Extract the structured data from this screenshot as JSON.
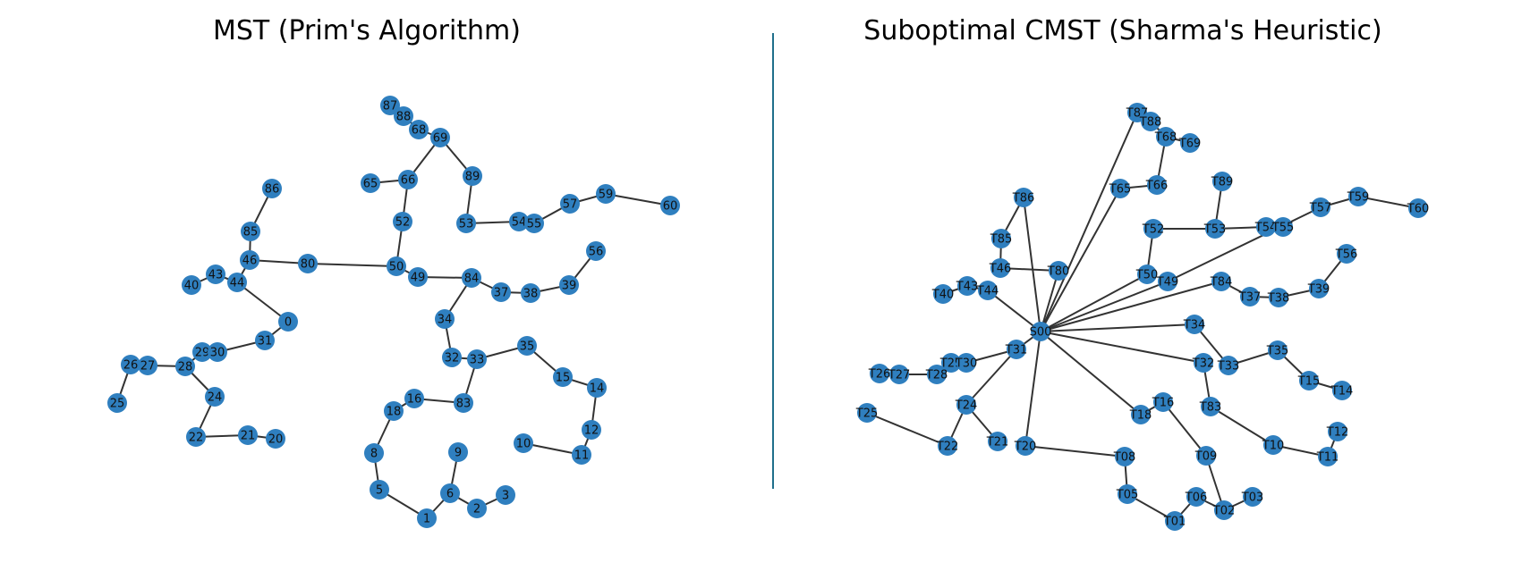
{
  "colors": {
    "node": "#2f7fbf",
    "edge": "#333333",
    "divider": "#1f6f8b",
    "text": "#000000"
  },
  "panels": [
    {
      "title": "MST (Prim's Algorithm)",
      "nodes": [
        {
          "id": "87",
          "label": "87"
        },
        {
          "id": "88",
          "label": "88"
        },
        {
          "id": "68",
          "label": "68"
        },
        {
          "id": "69",
          "label": "69"
        },
        {
          "id": "65",
          "label": "65"
        },
        {
          "id": "66",
          "label": "66"
        },
        {
          "id": "89",
          "label": "89"
        },
        {
          "id": "86",
          "label": "86"
        },
        {
          "id": "52",
          "label": "52"
        },
        {
          "id": "53",
          "label": "53"
        },
        {
          "id": "54",
          "label": "54"
        },
        {
          "id": "55",
          "label": "55"
        },
        {
          "id": "57",
          "label": "57"
        },
        {
          "id": "59",
          "label": "59"
        },
        {
          "id": "60",
          "label": "60"
        },
        {
          "id": "85",
          "label": "85"
        },
        {
          "id": "46",
          "label": "46"
        },
        {
          "id": "80",
          "label": "80"
        },
        {
          "id": "50",
          "label": "50"
        },
        {
          "id": "49",
          "label": "49"
        },
        {
          "id": "84",
          "label": "84"
        },
        {
          "id": "56",
          "label": "56"
        },
        {
          "id": "43",
          "label": "43"
        },
        {
          "id": "40",
          "label": "40"
        },
        {
          "id": "44",
          "label": "44"
        },
        {
          "id": "37",
          "label": "37"
        },
        {
          "id": "38",
          "label": "38"
        },
        {
          "id": "39",
          "label": "39"
        },
        {
          "id": "0",
          "label": "0"
        },
        {
          "id": "34",
          "label": "34"
        },
        {
          "id": "31",
          "label": "31"
        },
        {
          "id": "29",
          "label": "29"
        },
        {
          "id": "30",
          "label": "30"
        },
        {
          "id": "35",
          "label": "35"
        },
        {
          "id": "32",
          "label": "32"
        },
        {
          "id": "33",
          "label": "33"
        },
        {
          "id": "26",
          "label": "26"
        },
        {
          "id": "27",
          "label": "27"
        },
        {
          "id": "28",
          "label": "28"
        },
        {
          "id": "15",
          "label": "15"
        },
        {
          "id": "14",
          "label": "14"
        },
        {
          "id": "24",
          "label": "24"
        },
        {
          "id": "16",
          "label": "16"
        },
        {
          "id": "83",
          "label": "83"
        },
        {
          "id": "25",
          "label": "25"
        },
        {
          "id": "18",
          "label": "18"
        },
        {
          "id": "12",
          "label": "12"
        },
        {
          "id": "22",
          "label": "22"
        },
        {
          "id": "21",
          "label": "21"
        },
        {
          "id": "20",
          "label": "20"
        },
        {
          "id": "10",
          "label": "10"
        },
        {
          "id": "11",
          "label": "11"
        },
        {
          "id": "8",
          "label": "8"
        },
        {
          "id": "9",
          "label": "9"
        },
        {
          "id": "5",
          "label": "5"
        },
        {
          "id": "6",
          "label": "6"
        },
        {
          "id": "3",
          "label": "3"
        },
        {
          "id": "2",
          "label": "2"
        },
        {
          "id": "1",
          "label": "1"
        }
      ],
      "edges": [
        [
          "87",
          "88"
        ],
        [
          "88",
          "68"
        ],
        [
          "68",
          "69"
        ],
        [
          "69",
          "66"
        ],
        [
          "66",
          "65"
        ],
        [
          "69",
          "89"
        ],
        [
          "89",
          "53"
        ],
        [
          "53",
          "54"
        ],
        [
          "54",
          "55"
        ],
        [
          "55",
          "57"
        ],
        [
          "57",
          "59"
        ],
        [
          "59",
          "60"
        ],
        [
          "66",
          "52"
        ],
        [
          "52",
          "50"
        ],
        [
          "50",
          "80"
        ],
        [
          "80",
          "46"
        ],
        [
          "46",
          "85"
        ],
        [
          "85",
          "86"
        ],
        [
          "46",
          "44"
        ],
        [
          "44",
          "43"
        ],
        [
          "43",
          "40"
        ],
        [
          "44",
          "0"
        ],
        [
          "0",
          "31"
        ],
        [
          "31",
          "30"
        ],
        [
          "30",
          "29"
        ],
        [
          "29",
          "28"
        ],
        [
          "28",
          "27"
        ],
        [
          "27",
          "26"
        ],
        [
          "26",
          "25"
        ],
        [
          "28",
          "24"
        ],
        [
          "24",
          "22"
        ],
        [
          "22",
          "21"
        ],
        [
          "21",
          "20"
        ],
        [
          "50",
          "49"
        ],
        [
          "49",
          "84"
        ],
        [
          "84",
          "37"
        ],
        [
          "37",
          "38"
        ],
        [
          "38",
          "39"
        ],
        [
          "39",
          "56"
        ],
        [
          "84",
          "34"
        ],
        [
          "34",
          "32"
        ],
        [
          "32",
          "33"
        ],
        [
          "33",
          "35"
        ],
        [
          "35",
          "15"
        ],
        [
          "15",
          "14"
        ],
        [
          "14",
          "12"
        ],
        [
          "12",
          "11"
        ],
        [
          "11",
          "10"
        ],
        [
          "33",
          "83"
        ],
        [
          "83",
          "16"
        ],
        [
          "16",
          "18"
        ],
        [
          "18",
          "8"
        ],
        [
          "8",
          "5"
        ],
        [
          "5",
          "1"
        ],
        [
          "1",
          "6"
        ],
        [
          "6",
          "9"
        ],
        [
          "6",
          "2"
        ],
        [
          "2",
          "3"
        ]
      ]
    },
    {
      "title": "Suboptimal CMST (Sharma's Heuristic)",
      "nodes": [
        {
          "id": "T87",
          "label": "T87"
        },
        {
          "id": "T88",
          "label": "T88"
        },
        {
          "id": "T68",
          "label": "T68"
        },
        {
          "id": "T69",
          "label": "T69"
        },
        {
          "id": "T89",
          "label": "T89"
        },
        {
          "id": "T86",
          "label": "T86"
        },
        {
          "id": "T65",
          "label": "T65"
        },
        {
          "id": "T66",
          "label": "T66"
        },
        {
          "id": "T59",
          "label": "T59"
        },
        {
          "id": "T60",
          "label": "T60"
        },
        {
          "id": "T57",
          "label": "T57"
        },
        {
          "id": "T52",
          "label": "T52"
        },
        {
          "id": "T53",
          "label": "T53"
        },
        {
          "id": "T54",
          "label": "T54"
        },
        {
          "id": "T55",
          "label": "T55"
        },
        {
          "id": "T85",
          "label": "T85"
        },
        {
          "id": "T56",
          "label": "T56"
        },
        {
          "id": "T46",
          "label": "T46"
        },
        {
          "id": "T80",
          "label": "T80"
        },
        {
          "id": "T50",
          "label": "T50"
        },
        {
          "id": "T49",
          "label": "T49"
        },
        {
          "id": "T84",
          "label": "T84"
        },
        {
          "id": "T43",
          "label": "T43"
        },
        {
          "id": "T44",
          "label": "T44"
        },
        {
          "id": "T39",
          "label": "T39"
        },
        {
          "id": "T40",
          "label": "T40"
        },
        {
          "id": "T37",
          "label": "T37"
        },
        {
          "id": "T38",
          "label": "T38"
        },
        {
          "id": "T34",
          "label": "T34"
        },
        {
          "id": "S00",
          "label": "S00"
        },
        {
          "id": "T31",
          "label": "T31"
        },
        {
          "id": "T35",
          "label": "T35"
        },
        {
          "id": "T29",
          "label": "T29"
        },
        {
          "id": "T30",
          "label": "T30"
        },
        {
          "id": "T32",
          "label": "T32"
        },
        {
          "id": "T33",
          "label": "T33"
        },
        {
          "id": "T26",
          "label": "T26"
        },
        {
          "id": "T27",
          "label": "T27"
        },
        {
          "id": "T28",
          "label": "T28"
        },
        {
          "id": "T15",
          "label": "T15"
        },
        {
          "id": "T14",
          "label": "T14"
        },
        {
          "id": "T24",
          "label": "T24"
        },
        {
          "id": "T16",
          "label": "T16"
        },
        {
          "id": "T83",
          "label": "T83"
        },
        {
          "id": "T18",
          "label": "T18"
        },
        {
          "id": "T25",
          "label": "T25"
        },
        {
          "id": "T12",
          "label": "T12"
        },
        {
          "id": "T21",
          "label": "T21"
        },
        {
          "id": "T20",
          "label": "T20"
        },
        {
          "id": "T10",
          "label": "T10"
        },
        {
          "id": "T22",
          "label": "T22"
        },
        {
          "id": "T11",
          "label": "T11"
        },
        {
          "id": "T08",
          "label": "T08"
        },
        {
          "id": "T09",
          "label": "T09"
        },
        {
          "id": "T05",
          "label": "T05"
        },
        {
          "id": "T06",
          "label": "T06"
        },
        {
          "id": "T03",
          "label": "T03"
        },
        {
          "id": "T02",
          "label": "T02"
        },
        {
          "id": "T01",
          "label": "T01"
        }
      ],
      "edges": [
        [
          "S00",
          "T87"
        ],
        [
          "T87",
          "T88"
        ],
        [
          "T88",
          "T68"
        ],
        [
          "T68",
          "T69"
        ],
        [
          "T68",
          "T66"
        ],
        [
          "T66",
          "T65"
        ],
        [
          "S00",
          "T65"
        ],
        [
          "S00",
          "T86"
        ],
        [
          "T86",
          "T85"
        ],
        [
          "T85",
          "T46"
        ],
        [
          "T46",
          "T80"
        ],
        [
          "S00",
          "T80"
        ],
        [
          "S00",
          "T44"
        ],
        [
          "T44",
          "T43"
        ],
        [
          "T43",
          "T40"
        ],
        [
          "S00",
          "T50"
        ],
        [
          "T50",
          "T52"
        ],
        [
          "T52",
          "T53"
        ],
        [
          "T53",
          "T89"
        ],
        [
          "T53",
          "T54"
        ],
        [
          "T54",
          "T55"
        ],
        [
          "S00",
          "T49"
        ],
        [
          "T49",
          "T57"
        ],
        [
          "T57",
          "T59"
        ],
        [
          "T59",
          "T60"
        ],
        [
          "S00",
          "T84"
        ],
        [
          "T84",
          "T37"
        ],
        [
          "T37",
          "T38"
        ],
        [
          "T38",
          "T39"
        ],
        [
          "T39",
          "T56"
        ],
        [
          "S00",
          "T34"
        ],
        [
          "T34",
          "T33"
        ],
        [
          "T33",
          "T35"
        ],
        [
          "T35",
          "T15"
        ],
        [
          "T15",
          "T14"
        ],
        [
          "S00",
          "T32"
        ],
        [
          "T32",
          "T83"
        ],
        [
          "T83",
          "T10"
        ],
        [
          "T10",
          "T11"
        ],
        [
          "T11",
          "T12"
        ],
        [
          "S00",
          "T18"
        ],
        [
          "T18",
          "T16"
        ],
        [
          "T16",
          "T09"
        ],
        [
          "T09",
          "T02"
        ],
        [
          "T02",
          "T03"
        ],
        [
          "T02",
          "T06"
        ],
        [
          "T06",
          "T01"
        ],
        [
          "T01",
          "T05"
        ],
        [
          "T05",
          "T08"
        ],
        [
          "T08",
          "T20"
        ],
        [
          "S00",
          "T20"
        ],
        [
          "S00",
          "T31"
        ],
        [
          "T31",
          "T30"
        ],
        [
          "T30",
          "T29"
        ],
        [
          "T29",
          "T28"
        ],
        [
          "T28",
          "T27"
        ],
        [
          "T27",
          "T26"
        ],
        [
          "T31",
          "T24"
        ],
        [
          "T24",
          "T21"
        ],
        [
          "T24",
          "T22"
        ],
        [
          "T22",
          "T25"
        ]
      ]
    }
  ]
}
